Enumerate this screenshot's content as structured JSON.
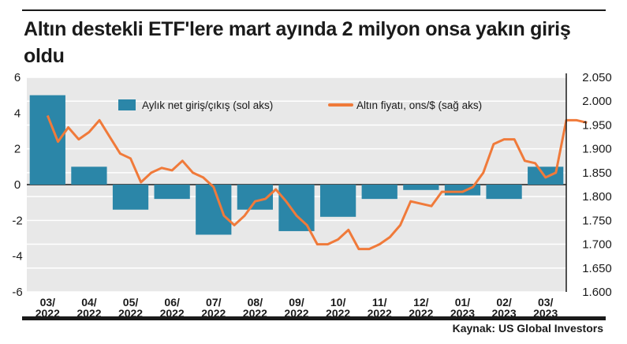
{
  "title": "Altın destekli ETF'lere mart ayında 2 milyon onsa yakın giriş oldu",
  "source": "Kaynak: US Global Investors",
  "colors": {
    "bar": "#2b86a8",
    "line": "#f07a3a",
    "grid": "#cfcfcf",
    "bg_band": "#e8e8e8"
  },
  "legend": {
    "bar_label": "Aylık net giriş/çıkış (sol aks)",
    "line_label": "Altın fiyatı, ons/$ (sağ aks)"
  },
  "chart_data": {
    "type": "bar",
    "title": "Altın destekli ETF'lere mart ayında 2 milyon onsa yakın giriş oldu",
    "categories": [
      "03/2022",
      "04/2022",
      "05/2022",
      "06/2022",
      "07/2022",
      "08/2022",
      "09/2022",
      "10/2022",
      "11/2022",
      "12/2022",
      "01/2023",
      "02/2023",
      "03/2023"
    ],
    "category_lines": [
      [
        "03/",
        "2022"
      ],
      [
        "04/",
        "2022"
      ],
      [
        "05/",
        "2022"
      ],
      [
        "06/",
        "2022"
      ],
      [
        "07/",
        "2022"
      ],
      [
        "08/",
        "2022"
      ],
      [
        "09/",
        "2022"
      ],
      [
        "10/",
        "2022"
      ],
      [
        "11/",
        "2022"
      ],
      [
        "12/",
        "2022"
      ],
      [
        "01/",
        "2023"
      ],
      [
        "02/",
        "2023"
      ],
      [
        "03/",
        "2023"
      ]
    ],
    "series": [
      {
        "name": "Aylık net giriş/çıkış (sol aks)",
        "type": "bar",
        "axis": "left",
        "values": [
          5.0,
          1.0,
          -1.4,
          -0.8,
          -2.8,
          -1.4,
          -2.6,
          -1.8,
          -0.8,
          -0.3,
          -0.6,
          -0.8,
          1.0
        ]
      },
      {
        "name": "Altın fiyatı, ons/$ (sağ aks)",
        "type": "line",
        "axis": "right",
        "x": [
          0,
          0.25,
          0.5,
          0.75,
          1.0,
          1.25,
          1.5,
          1.75,
          2.0,
          2.25,
          2.5,
          2.75,
          3.0,
          3.25,
          3.5,
          3.75,
          4.0,
          4.25,
          4.5,
          4.75,
          5.0,
          5.25,
          5.5,
          5.75,
          6.0,
          6.25,
          6.5,
          6.75,
          7.0,
          7.25,
          7.5,
          7.75,
          8.0,
          8.25,
          8.5,
          8.75,
          9.0,
          9.25,
          9.5,
          9.75,
          10.0,
          10.25,
          10.5,
          10.75,
          11.0,
          11.25,
          11.5,
          11.75,
          12.0,
          12.25,
          12.5,
          12.75,
          13.0
        ],
        "values": [
          1970,
          1915,
          1945,
          1920,
          1935,
          1960,
          1925,
          1890,
          1880,
          1830,
          1850,
          1860,
          1855,
          1875,
          1850,
          1840,
          1820,
          1760,
          1740,
          1760,
          1790,
          1795,
          1815,
          1790,
          1760,
          1740,
          1700,
          1700,
          1710,
          1730,
          1690,
          1690,
          1700,
          1715,
          1740,
          1790,
          1785,
          1780,
          1810,
          1810,
          1810,
          1820,
          1850,
          1910,
          1920,
          1920,
          1875,
          1870,
          1840,
          1850,
          1960,
          1960,
          1955
        ]
      }
    ],
    "yleft": {
      "ticks": [
        "6",
        "4",
        "2",
        "0",
        "-2",
        "-4",
        "-6"
      ],
      "ylim": [
        -6,
        6
      ]
    },
    "yright": {
      "ticks": [
        "2.050",
        "2.000",
        "1.950",
        "1.900",
        "1.850",
        "1.800",
        "1.750",
        "1.700",
        "1.650",
        "1.600"
      ],
      "ylim": [
        1600,
        2050
      ]
    },
    "grid": true,
    "legend_position": "top-center"
  }
}
